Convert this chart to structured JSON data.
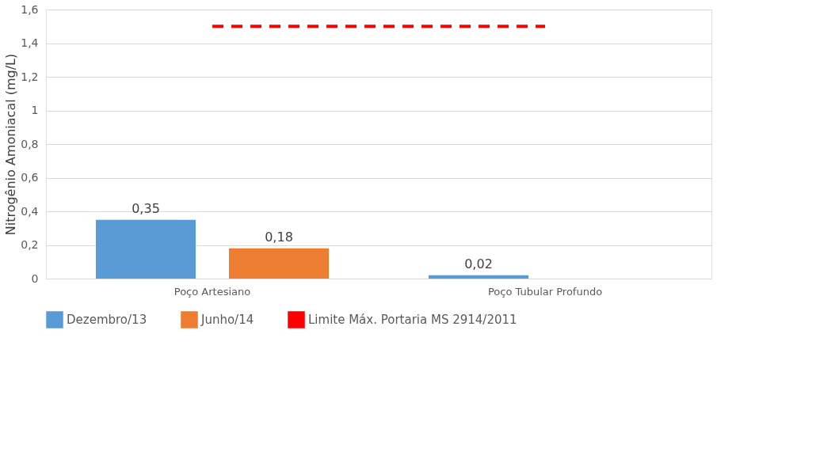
{
  "chart_data": {
    "type": "bar",
    "ylabel": "Nitrogênio Amoniacal (mg/L)",
    "categories": [
      "Poço Artesiano",
      "Poço Tubular Profundo"
    ],
    "series": [
      {
        "name": "Dezembro/13",
        "color": "#5b9bd5",
        "values": [
          0.35,
          0.02
        ],
        "value_labels": [
          "0,35",
          "0,02"
        ]
      },
      {
        "name": "Junho/14",
        "color": "#ed7d31",
        "values": [
          0.18,
          null
        ],
        "value_labels": [
          "0,18",
          null
        ]
      },
      {
        "name": "Limite Máx. Portaria MS 2914/2011",
        "type": "line",
        "color": "#ff0000",
        "line_style": "dashed",
        "values": [
          1.5,
          1.5
        ]
      }
    ],
    "ylim": [
      0,
      1.6
    ],
    "yticks": [
      0,
      {
        "value": 0.2,
        "label": "0,2"
      },
      {
        "value": 0.4,
        "label": "0,4"
      },
      {
        "value": 0.6,
        "label": "0,6"
      },
      {
        "value": 0.8,
        "label": "0,8"
      },
      1,
      {
        "value": 1.2,
        "label": "1,2"
      },
      {
        "value": 1.4,
        "label": "1,4"
      },
      {
        "value": 1.6,
        "label": "1,6"
      }
    ],
    "grid": "y",
    "legend": "bottom"
  }
}
